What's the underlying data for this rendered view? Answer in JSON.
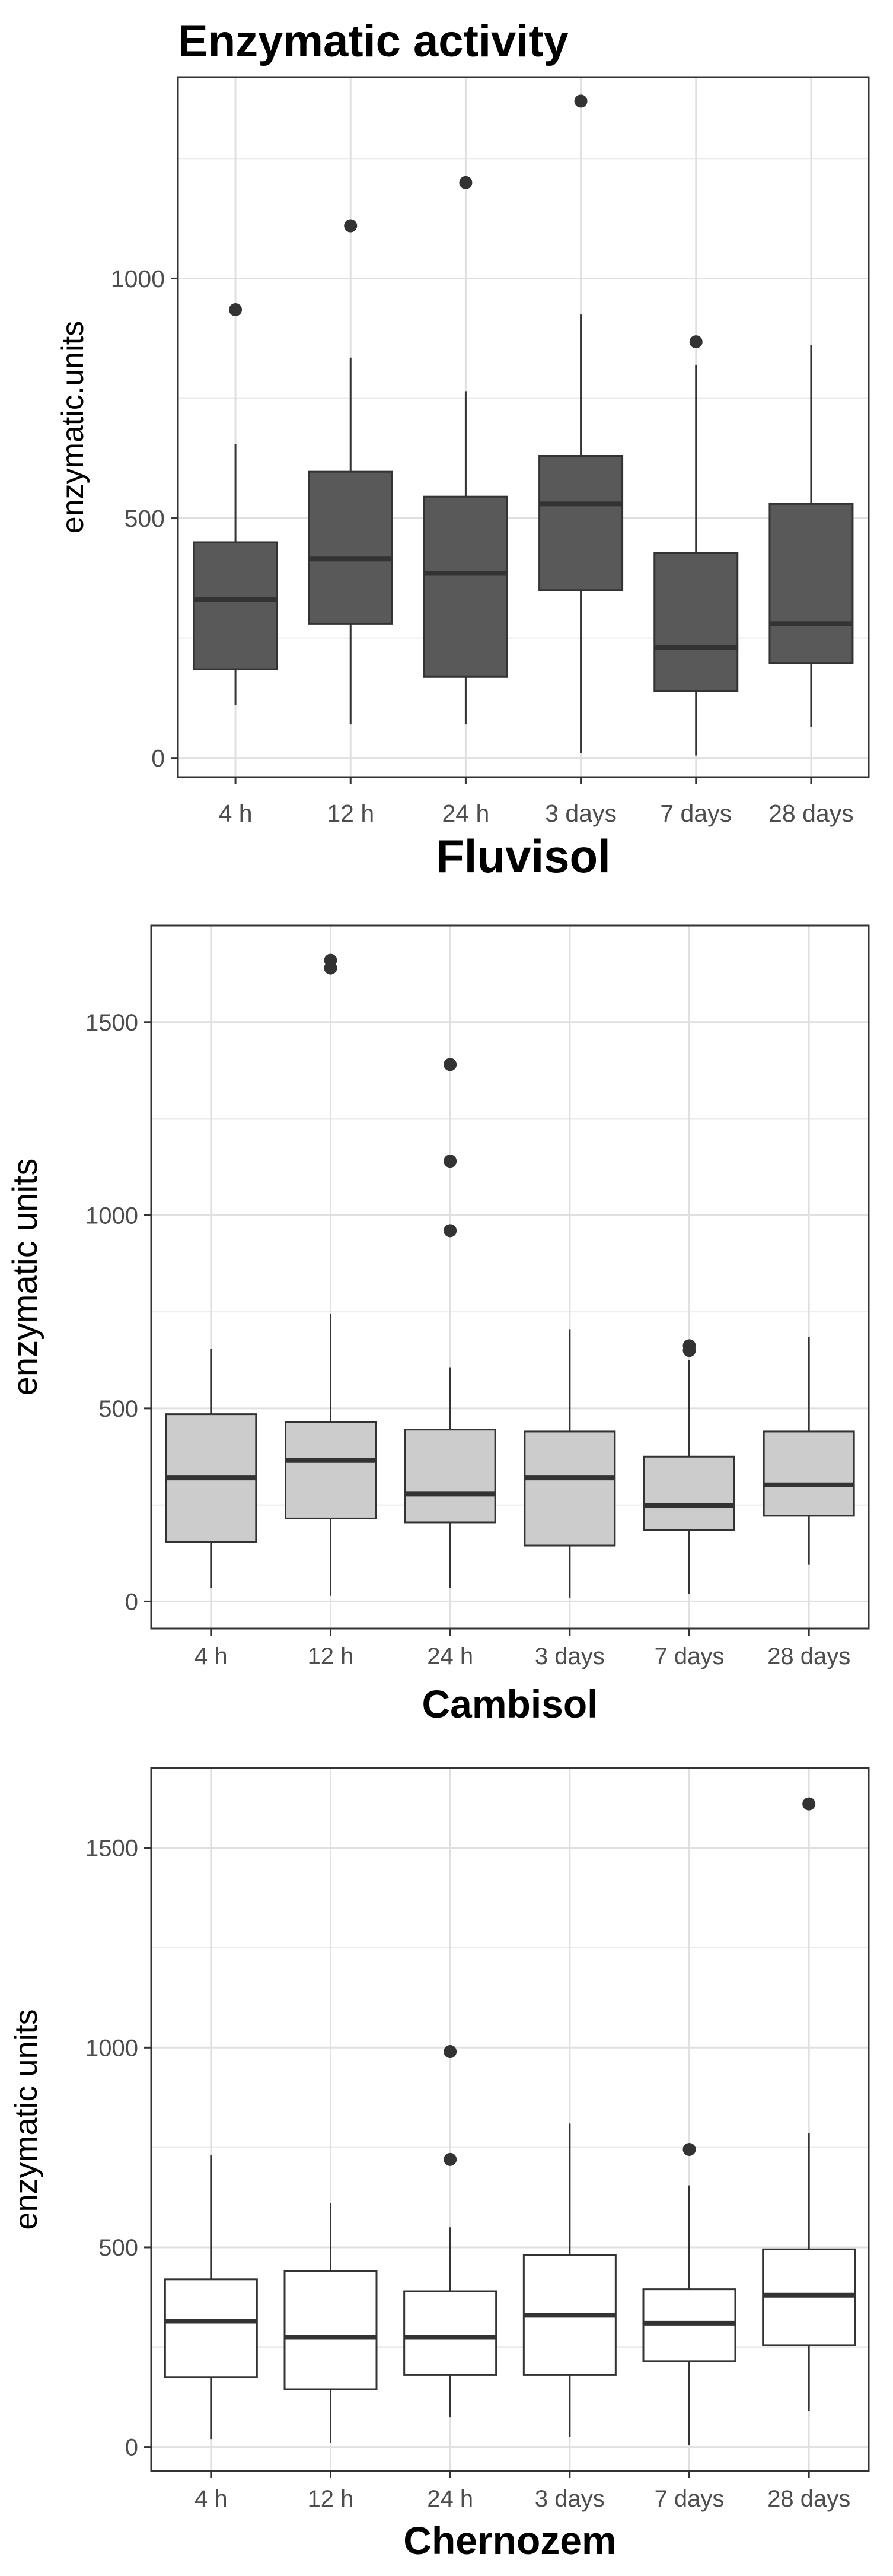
{
  "figure_title": "Enzymatic activity",
  "chart_data": [
    {
      "type": "boxplot",
      "xlabel": "Fluvisol",
      "ylabel": "enzymatic.units",
      "ylim": [
        -40,
        1420
      ],
      "yticks": [
        0,
        500,
        1000
      ],
      "ytick_labels": [
        "0",
        "500",
        "1000"
      ],
      "grid": true,
      "fill_color": "#595959",
      "categories": [
        "4 h",
        "12 h",
        "24 h",
        "3 days",
        "7 days",
        "28 days"
      ],
      "boxes": [
        {
          "whisker_low": 110,
          "q1": 185,
          "median": 330,
          "q3": 450,
          "whisker_high": 655,
          "outliers": [
            935
          ]
        },
        {
          "whisker_low": 70,
          "q1": 280,
          "median": 415,
          "q3": 597,
          "whisker_high": 835,
          "outliers": [
            1110
          ]
        },
        {
          "whisker_low": 70,
          "q1": 170,
          "median": 385,
          "q3": 545,
          "whisker_high": 765,
          "outliers": [
            1200
          ]
        },
        {
          "whisker_low": 10,
          "q1": 350,
          "median": 530,
          "q3": 630,
          "whisker_high": 925,
          "outliers": [
            1370
          ]
        },
        {
          "whisker_low": 5,
          "q1": 140,
          "median": 230,
          "q3": 428,
          "whisker_high": 820,
          "outliers": [
            868
          ]
        },
        {
          "whisker_low": 65,
          "q1": 198,
          "median": 280,
          "q3": 530,
          "whisker_high": 862,
          "outliers": []
        }
      ]
    },
    {
      "type": "boxplot",
      "xlabel": "Cambisol",
      "ylabel": "enzymatic units",
      "ylim": [
        -70,
        1750
      ],
      "yticks": [
        0,
        500,
        1000,
        1500
      ],
      "ytick_labels": [
        "0",
        "500",
        "1000",
        "1500"
      ],
      "grid": true,
      "fill_color": "#cccccc",
      "categories": [
        "4 h",
        "12 h",
        "24 h",
        "3 days",
        "7 days",
        "28 days"
      ],
      "boxes": [
        {
          "whisker_low": 35,
          "q1": 155,
          "median": 320,
          "q3": 485,
          "whisker_high": 655,
          "outliers": []
        },
        {
          "whisker_low": 15,
          "q1": 215,
          "median": 365,
          "q3": 465,
          "whisker_high": 745,
          "outliers": [
            1640,
            1660
          ]
        },
        {
          "whisker_low": 35,
          "q1": 205,
          "median": 278,
          "q3": 445,
          "whisker_high": 605,
          "outliers": [
            960,
            1140,
            1390
          ]
        },
        {
          "whisker_low": 10,
          "q1": 145,
          "median": 320,
          "q3": 440,
          "whisker_high": 705,
          "outliers": []
        },
        {
          "whisker_low": 20,
          "q1": 185,
          "median": 248,
          "q3": 375,
          "whisker_high": 625,
          "outliers": [
            650,
            662
          ]
        },
        {
          "whisker_low": 95,
          "q1": 222,
          "median": 302,
          "q3": 440,
          "whisker_high": 685,
          "outliers": []
        }
      ]
    },
    {
      "type": "boxplot",
      "xlabel": "Chernozem",
      "ylabel": "enzymatic units",
      "ylim": [
        -60,
        1700
      ],
      "yticks": [
        0,
        500,
        1000,
        1500
      ],
      "ytick_labels": [
        "0",
        "500",
        "1000",
        "1500"
      ],
      "grid": true,
      "fill_color": "#ffffff",
      "categories": [
        "4 h",
        "12 h",
        "24 h",
        "3 days",
        "7 days",
        "28 days"
      ],
      "boxes": [
        {
          "whisker_low": 20,
          "q1": 175,
          "median": 315,
          "q3": 420,
          "whisker_high": 730,
          "outliers": []
        },
        {
          "whisker_low": 10,
          "q1": 145,
          "median": 275,
          "q3": 440,
          "whisker_high": 610,
          "outliers": []
        },
        {
          "whisker_low": 75,
          "q1": 180,
          "median": 275,
          "q3": 390,
          "whisker_high": 550,
          "outliers": [
            720,
            990
          ]
        },
        {
          "whisker_low": 25,
          "q1": 180,
          "median": 330,
          "q3": 480,
          "whisker_high": 810,
          "outliers": []
        },
        {
          "whisker_low": 5,
          "q1": 215,
          "median": 310,
          "q3": 395,
          "whisker_high": 655,
          "outliers": [
            745
          ]
        },
        {
          "whisker_low": 90,
          "q1": 255,
          "median": 380,
          "q3": 495,
          "whisker_high": 785,
          "outliers": [
            1610
          ]
        }
      ]
    }
  ]
}
